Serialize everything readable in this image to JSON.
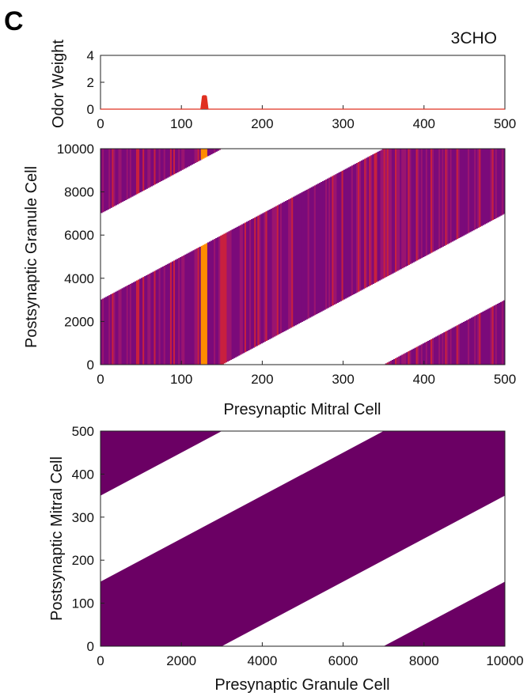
{
  "figure": {
    "panel_label": "C",
    "odor_label": "3CHO"
  },
  "colors": {
    "background": "#ffffff",
    "purple": "#7b0a7a",
    "magenta": "#9a1470",
    "red": "#c8203f",
    "orange": "#ff8c00",
    "odor_line": "#e03020",
    "axis": "#222222",
    "bottom_fill": "#6b0064"
  },
  "chart_data": [
    {
      "type": "area",
      "id": "odor-weight",
      "xlabel": "",
      "ylabel": "Odor Weight",
      "xlim": [
        0,
        500
      ],
      "ylim": [
        0,
        4
      ],
      "xticks": [
        "0",
        "100",
        "200",
        "300",
        "400",
        "500"
      ],
      "yticks": [
        "0",
        "2",
        "4"
      ],
      "x": [
        0,
        124,
        126,
        127,
        130,
        131,
        133,
        500
      ],
      "y": [
        0,
        0,
        0.95,
        1.0,
        1.0,
        0.95,
        0,
        0
      ]
    },
    {
      "type": "heatmap",
      "id": "mitral-to-granule",
      "xlabel": "Presynaptic Mitral Cell",
      "ylabel": "Postsynaptic Granule Cell",
      "xlim": [
        0,
        500
      ],
      "ylim": [
        0,
        10000
      ],
      "xticks": [
        "0",
        "100",
        "200",
        "300",
        "400",
        "500"
      ],
      "yticks": [
        "0",
        "2000",
        "4000",
        "6000",
        "8000",
        "10000"
      ],
      "connectivity_halfwidth": 3000,
      "strong_column": [
        124,
        131
      ]
    },
    {
      "type": "heatmap",
      "id": "granule-to-mitral",
      "xlabel": "Presynaptic Granule Cell",
      "ylabel": "Postsynaptic Mitral Cell",
      "xlim": [
        0,
        10000
      ],
      "ylim": [
        0,
        500
      ],
      "xticks": [
        "0",
        "2000",
        "4000",
        "6000",
        "8000",
        "10000"
      ],
      "yticks": [
        "0",
        "100",
        "200",
        "300",
        "400",
        "500"
      ],
      "connectivity_halfwidth": 3000
    }
  ]
}
